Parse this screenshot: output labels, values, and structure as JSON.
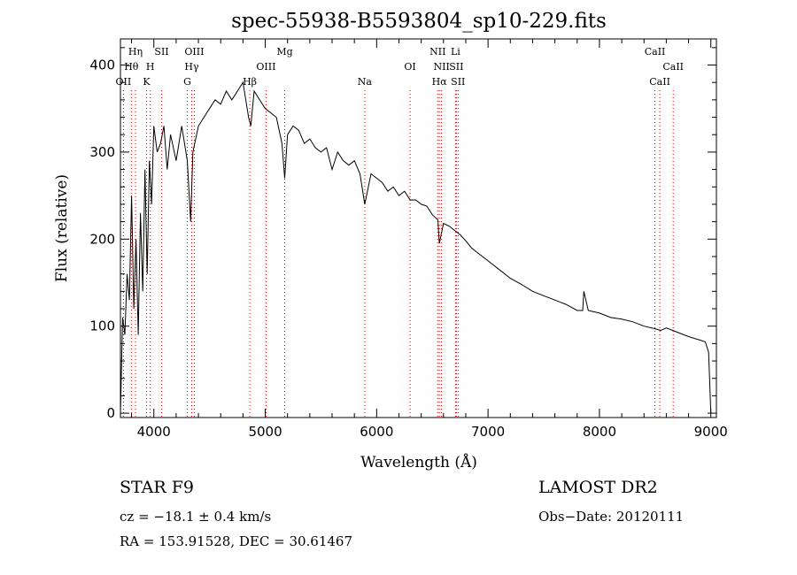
{
  "chart_data": {
    "type": "line",
    "title": "spec-55938-B5593804_sp10-229.fits",
    "xlabel": "Wavelength (Å)",
    "ylabel": "Flux (relative)",
    "xlim": [
      3700,
      9050
    ],
    "ylim": [
      -5,
      430
    ],
    "xticks": [
      4000,
      5000,
      6000,
      7000,
      8000,
      9000
    ],
    "yticks": [
      0,
      100,
      200,
      300,
      400
    ],
    "grid": false,
    "series": [
      {
        "name": "flux",
        "x": [
          3700,
          3720,
          3740,
          3760,
          3780,
          3800,
          3820,
          3840,
          3860,
          3880,
          3900,
          3920,
          3940,
          3960,
          3980,
          4000,
          4030,
          4060,
          4090,
          4120,
          4150,
          4200,
          4250,
          4300,
          4330,
          4350,
          4400,
          4450,
          4500,
          4550,
          4600,
          4650,
          4700,
          4750,
          4800,
          4850,
          4870,
          4900,
          4950,
          5000,
          5050,
          5100,
          5150,
          5175,
          5200,
          5250,
          5300,
          5350,
          5400,
          5450,
          5500,
          5550,
          5600,
          5650,
          5700,
          5750,
          5800,
          5850,
          5893,
          5950,
          6000,
          6050,
          6100,
          6150,
          6200,
          6250,
          6300,
          6350,
          6400,
          6450,
          6500,
          6550,
          6563,
          6600,
          6650,
          6700,
          6750,
          6800,
          6850,
          6900,
          6950,
          7000,
          7100,
          7200,
          7300,
          7400,
          7500,
          7600,
          7700,
          7800,
          7850,
          7860,
          7900,
          8000,
          8100,
          8200,
          8300,
          8400,
          8500,
          8550,
          8600,
          8700,
          8800,
          8900,
          8950,
          8980,
          9000
        ],
        "y": [
          0,
          110,
          90,
          160,
          130,
          250,
          120,
          200,
          90,
          230,
          140,
          280,
          160,
          290,
          240,
          330,
          300,
          310,
          330,
          280,
          320,
          290,
          330,
          290,
          220,
          300,
          330,
          340,
          350,
          360,
          355,
          370,
          360,
          370,
          380,
          340,
          330,
          370,
          360,
          350,
          345,
          340,
          310,
          270,
          320,
          330,
          325,
          310,
          315,
          305,
          300,
          305,
          280,
          300,
          290,
          285,
          290,
          275,
          240,
          275,
          270,
          265,
          255,
          260,
          250,
          255,
          245,
          245,
          240,
          238,
          228,
          222,
          195,
          218,
          215,
          210,
          205,
          198,
          190,
          185,
          180,
          175,
          165,
          155,
          148,
          140,
          135,
          130,
          125,
          118,
          118,
          140,
          118,
          115,
          110,
          108,
          105,
          100,
          97,
          95,
          98,
          93,
          88,
          84,
          82,
          70,
          0
        ]
      }
    ],
    "lines": [
      {
        "label": "OII",
        "wavelength": 3727,
        "row": 2
      },
      {
        "label": "Hθ",
        "wavelength": 3798,
        "row": 1
      },
      {
        "label": "Hη",
        "wavelength": 3835,
        "row": 0
      },
      {
        "label": "K",
        "wavelength": 3934,
        "row": 2
      },
      {
        "label": "H",
        "wavelength": 3968,
        "row": 1
      },
      {
        "label": "SII",
        "wavelength": 4070,
        "row": 0
      },
      {
        "label": "G",
        "wavelength": 4300,
        "row": 2
      },
      {
        "label": "Hγ",
        "wavelength": 4340,
        "row": 1
      },
      {
        "label": "OIII",
        "wavelength": 4363,
        "row": 0
      },
      {
        "label": "Hβ",
        "wavelength": 4861,
        "row": 2
      },
      {
        "label": "OIII",
        "wavelength": 5007,
        "row": 1
      },
      {
        "label": "Mg",
        "wavelength": 5175,
        "row": 0
      },
      {
        "label": "Na",
        "wavelength": 5893,
        "row": 2
      },
      {
        "label": "OI",
        "wavelength": 6300,
        "row": 1
      },
      {
        "label": "NII",
        "wavelength": 6548,
        "row": 0
      },
      {
        "label": "Hα",
        "wavelength": 6563,
        "row": 2
      },
      {
        "label": "NII",
        "wavelength": 6583,
        "row": 1
      },
      {
        "label": "Li",
        "wavelength": 6708,
        "row": 0
      },
      {
        "label": "SII",
        "wavelength": 6716,
        "row": 1
      },
      {
        "label": "SII",
        "wavelength": 6731,
        "row": 2
      },
      {
        "label": "CaII",
        "wavelength": 8498,
        "row": 0
      },
      {
        "label": "CaII",
        "wavelength": 8542,
        "row": 2
      },
      {
        "label": "CaII",
        "wavelength": 8662,
        "row": 1
      }
    ]
  },
  "info": {
    "classification": "STAR    F9",
    "survey": "LAMOST DR2",
    "cz": "cz = −18.1 ± 0.4 km/s",
    "obs_date": "Obs−Date: 20120111",
    "ra_dec": "RA = 153.91528, DEC =  30.61467"
  },
  "colors": {
    "spectrum": "#000000",
    "line_markers": "#cc0000",
    "axes": "#000000"
  }
}
